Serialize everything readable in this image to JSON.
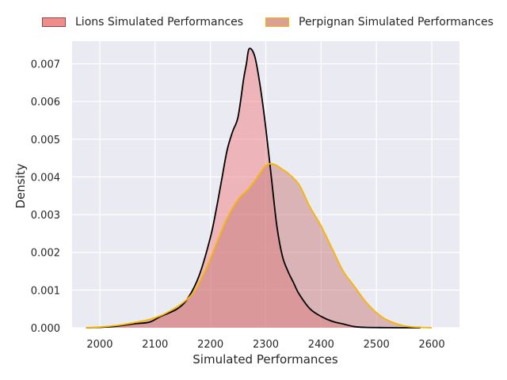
{
  "chart_data": {
    "type": "area",
    "title": "",
    "xlabel": "Simulated Performances",
    "ylabel": "Density",
    "xlim": [
      1950,
      2650
    ],
    "ylim": [
      0,
      0.0076
    ],
    "xticks": [
      2000,
      2100,
      2200,
      2300,
      2400,
      2500,
      2600
    ],
    "xtick_labels": [
      "2000",
      "2100",
      "2200",
      "2300",
      "2400",
      "2500",
      "2600"
    ],
    "yticks": [
      0,
      0.001,
      0.002,
      0.003,
      0.004,
      0.005,
      0.006,
      0.007
    ],
    "ytick_labels": [
      "0.000",
      "0.001",
      "0.002",
      "0.003",
      "0.004",
      "0.005",
      "0.006",
      "0.007"
    ],
    "grid": true,
    "legend_position": "top",
    "series": [
      {
        "name": "Lions Simulated Performances",
        "fill": "#f08080",
        "fill_opacity": 0.5,
        "stroke": "#000000",
        "x": [
          1975,
          2000,
          2030,
          2060,
          2090,
          2110,
          2140,
          2160,
          2180,
          2200,
          2210,
          2220,
          2230,
          2240,
          2250,
          2260,
          2265,
          2270,
          2280,
          2290,
          2300,
          2310,
          2320,
          2330,
          2340,
          2350,
          2360,
          2380,
          2400,
          2420,
          2440,
          2460,
          2480,
          2500,
          2520,
          2550,
          2580
        ],
        "y": [
          0,
          1e-05,
          4e-05,
          0.0001,
          0.00015,
          0.0003,
          0.0005,
          0.0008,
          0.0014,
          0.0024,
          0.0031,
          0.0039,
          0.0047,
          0.0052,
          0.0056,
          0.0066,
          0.007,
          0.0074,
          0.0072,
          0.0064,
          0.0053,
          0.004,
          0.0027,
          0.0019,
          0.0015,
          0.0012,
          0.0009,
          0.0005,
          0.0003,
          0.00017,
          0.0001,
          3e-05,
          1e-05,
          5e-06,
          2e-06,
          0,
          0
        ]
      },
      {
        "name": "Perpignan Simulated Performances",
        "fill": "#c97b7b",
        "fill_opacity": 0.5,
        "stroke": "#f5b800",
        "x": [
          1975,
          2000,
          2030,
          2060,
          2090,
          2110,
          2130,
          2150,
          2170,
          2190,
          2210,
          2230,
          2250,
          2270,
          2290,
          2300,
          2310,
          2320,
          2330,
          2340,
          2360,
          2380,
          2400,
          2420,
          2440,
          2460,
          2480,
          2500,
          2520,
          2550,
          2580,
          2600
        ],
        "y": [
          0,
          2e-05,
          6e-05,
          0.00013,
          0.00022,
          0.00032,
          0.00047,
          0.00066,
          0.00095,
          0.0015,
          0.0022,
          0.0029,
          0.0034,
          0.0037,
          0.0041,
          0.0043,
          0.00435,
          0.0043,
          0.0042,
          0.0041,
          0.0038,
          0.0032,
          0.0027,
          0.0021,
          0.0015,
          0.0011,
          0.0007,
          0.0004,
          0.0002,
          5e-05,
          1e-05,
          0
        ]
      }
    ]
  }
}
